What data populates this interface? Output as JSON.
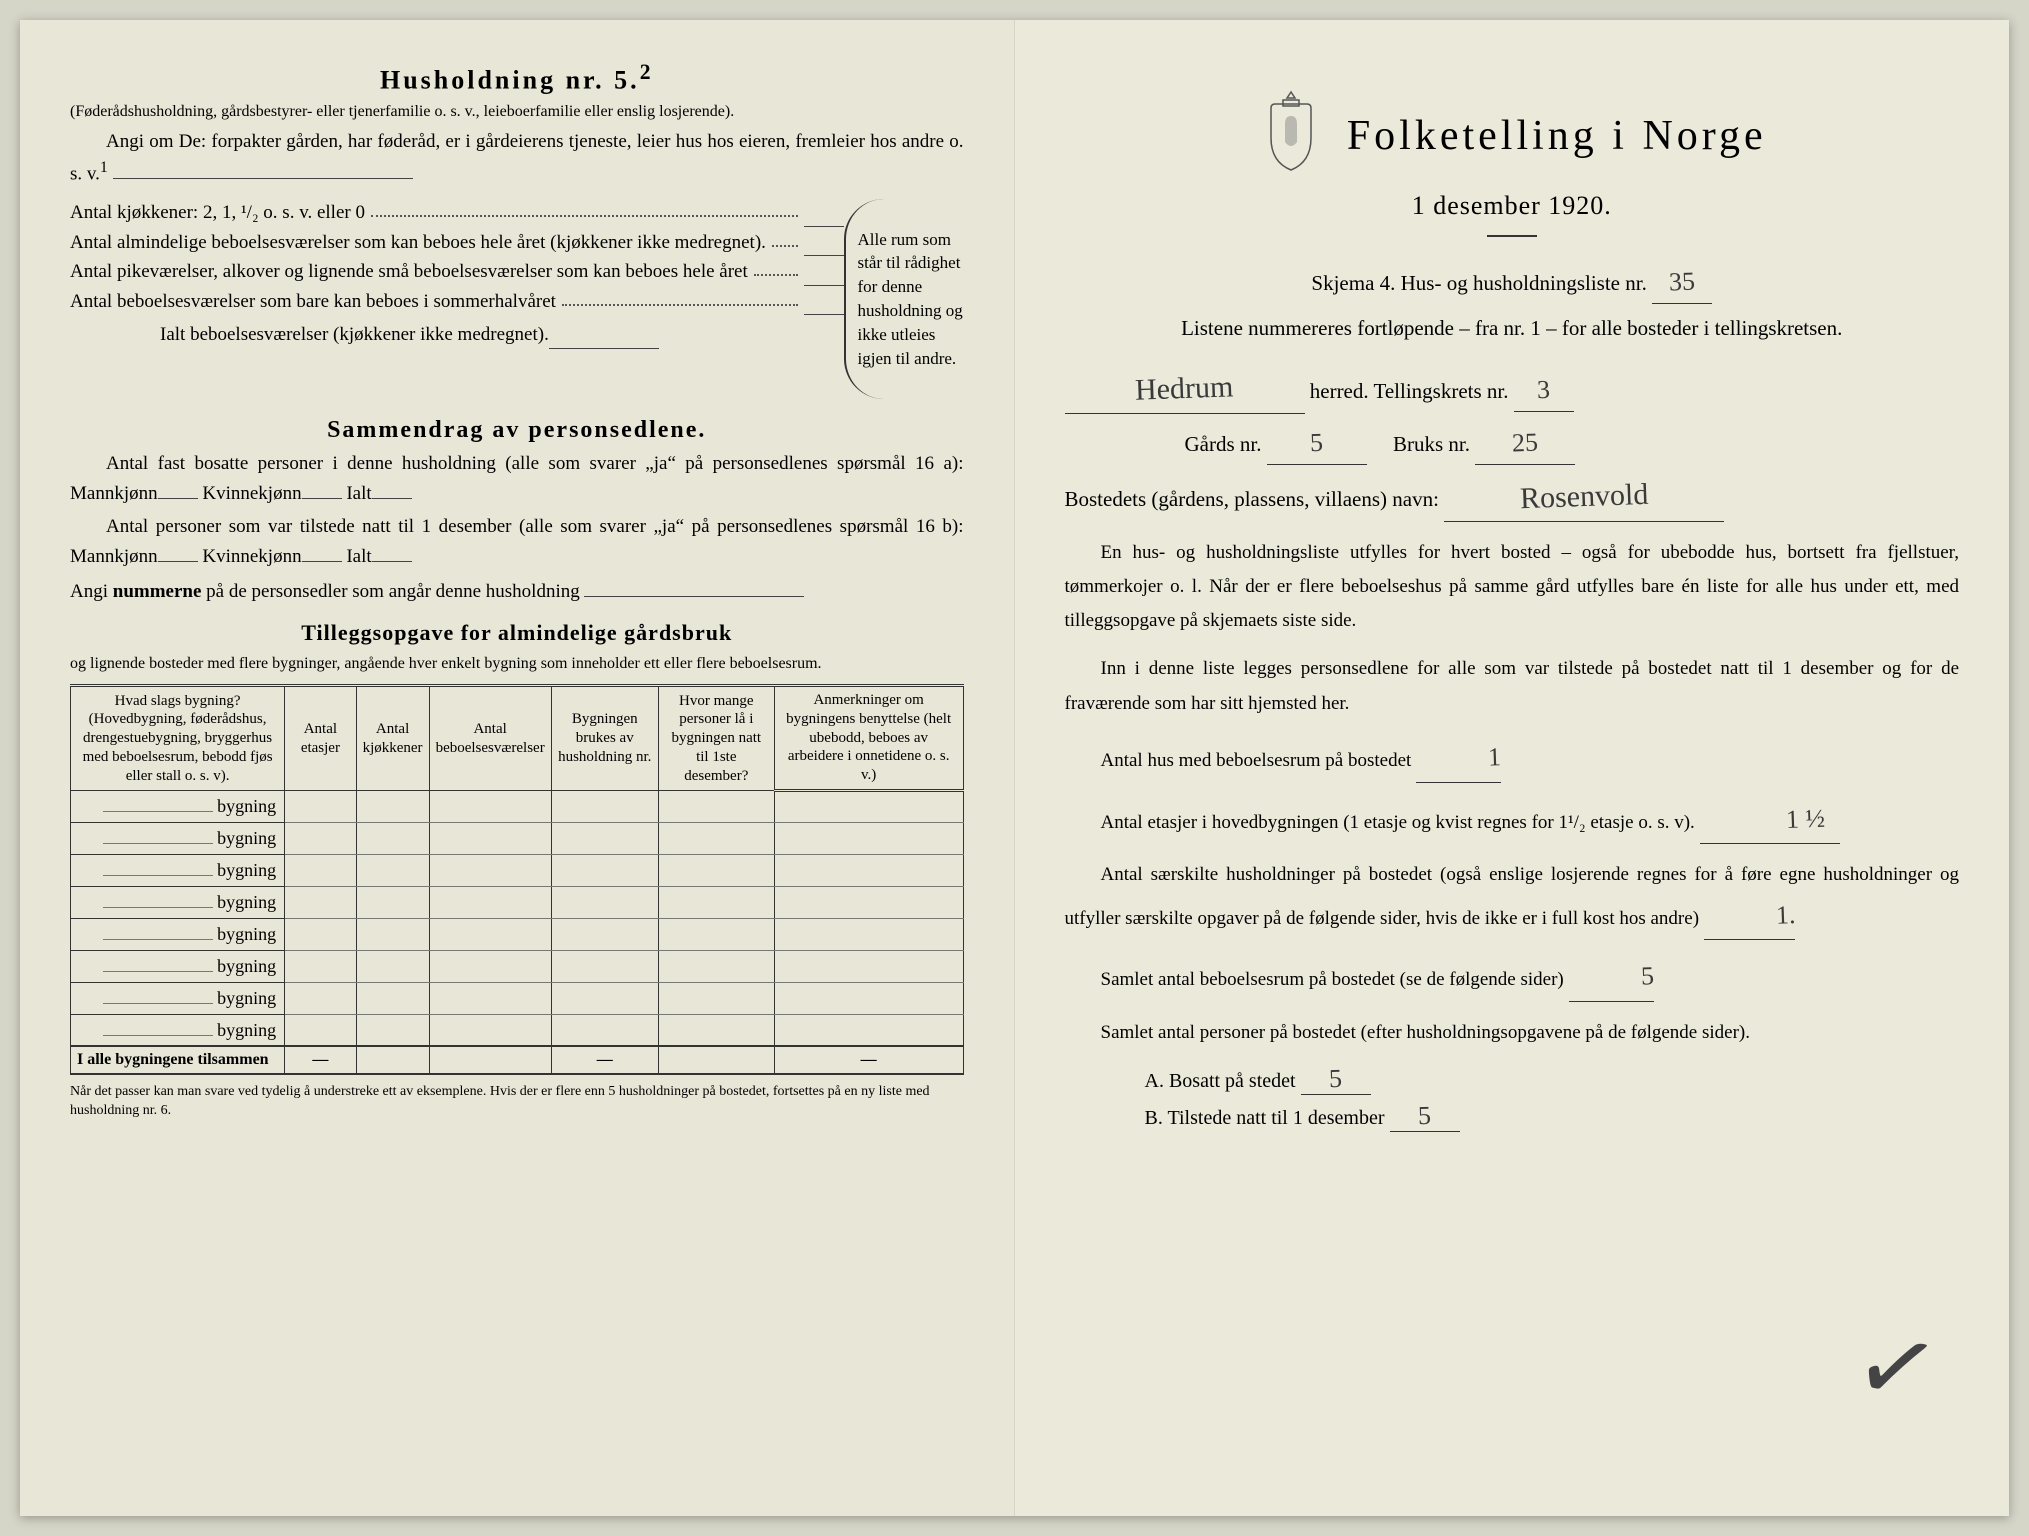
{
  "left": {
    "h2": "Husholdning nr. 5.",
    "h2_sup": "2",
    "intro1": "(Føderådshusholdning, gårdsbestyrer- eller tjenerfamilie o. s. v., leieboerfamilie eller enslig losjerende).",
    "intro2": "Angi om De:  forpakter gården, har føderåd, er i gårdeierens tjeneste, leier hus hos eieren, fremleier hos andre o. s. v.",
    "intro2_sup": "1",
    "kitchens_label": "Antal kjøkkener: 2, 1, ¹/₂ o. s. v. eller 0",
    "room_lines": [
      "Antal almindelige beboelsesværelser som kan beboes hele året (kjøkkener ikke medregnet).",
      "Antal pikeværelser, alkover og lignende små beboelsesværelser som kan beboes hele året",
      "Antal beboelsesværelser som bare kan beboes i sommerhalvåret"
    ],
    "ialt": "Ialt beboelsesværelser  (kjøkkener ikke medregnet).",
    "bracket_text": "Alle rum som står til rådighet for denne husholdning og ikke utleies igjen til andre.",
    "h3_summary": "Sammendrag av personsedlene.",
    "sum1_a": "Antal fast bosatte personer i denne husholdning (alle som svarer „ja“ på personsedlenes spørsmål 16 a): Mannkjønn",
    "sum1_b": "Kvinnekjønn",
    "sum1_c": "Ialt",
    "sum2_a": "Antal personer som var tilstede natt til 1 desember (alle som svarer „ja“ på personsedlenes spørsmål 16 b): Mannkjønn",
    "angi": "Angi ",
    "angi_bold": "nummerne",
    "angi_rest": " på de personsedler som angår denne husholdning",
    "h4_tillegg": "Tilleggsopgave for almindelige gårdsbruk",
    "tillegg_sub": "og lignende bosteder med flere bygninger, angående hver enkelt bygning som inneholder ett eller flere beboelsesrum.",
    "table": {
      "cols": [
        "Hvad slags bygning?\n(Hovedbygning, føderådshus, drengestuebygning, bryggerhus med beboelsesrum, bebodd fjøs eller stall o. s. v).",
        "Antal etasjer",
        "Antal kjøkkener",
        "Antal beboelsesværelser",
        "Bygningen brukes av husholdning nr.",
        "Hvor mange personer lå i bygningen natt til 1ste desember?",
        "Anmerkninger om bygningens benyttelse (helt ubebodd, beboes av arbeidere i onnetidene o. s. v.)"
      ],
      "rowcount": 8,
      "row_label": "bygning",
      "summary_label": "I alle bygningene tilsammen",
      "footnote": "Når det passer kan man svare ved tydelig å understreke ett av eksemplene.\nHvis der er flere enn 5 husholdninger på bostedet, fortsettes på en ny liste med husholdning nr. 6."
    }
  },
  "right": {
    "title": "Folketelling i Norge",
    "subtitle": "1 desember 1920.",
    "skjema": "Skjema 4.   Hus- og husholdningsliste nr.",
    "skjema_val": "35",
    "listene": "Listene nummereres fortløpende – fra nr. 1 – for alle bosteder i tellingskretsen.",
    "herred_val": "Hedrum",
    "herred_lbl": "herred.   Tellingskrets nr.",
    "krets_val": "3",
    "gards_lbl": "Gårds nr.",
    "gards_val": "5",
    "bruks_lbl": "Bruks nr.",
    "bruks_val": "25",
    "bosted_lbl": "Bostedets (gårdens, plassens, villaens) navn:",
    "bosted_val": "Rosenvold",
    "para1": "En hus- og husholdningsliste utfylles for hvert bosted – også for ubebodde hus, bortsett fra fjellstuer, tømmerkojer o. l.  Når der er flere beboelseshus på samme gård utfylles bare én liste for alle hus under ett, med tilleggsopgave på skjemaets siste side.",
    "para2": "Inn i denne liste legges personsedlene for alle som var tilstede på bostedet natt til 1 desember og for de fraværende som har sitt hjemsted her.",
    "q1_lbl": "Antal hus med beboelsesrum på bostedet",
    "q1_val": "1",
    "q2_a": "Antal etasjer i hovedbygningen (1 etasje og kvist regnes for 1¹/₂ etasje o. s. v).",
    "q2_val": "1 ½",
    "q3": "Antal særskilte husholdninger på bostedet (også enslige losjerende regnes for å føre egne husholdninger og utfyller særskilte opgaver på de følgende sider, hvis de ikke er i full kost hos andre)",
    "q3_val": "1.",
    "q4": "Samlet antal beboelsesrum på bostedet (se de følgende sider)",
    "q4_val": "5",
    "q5": "Samlet antal personer på bostedet (efter husholdningsopgavene på de følgende sider).",
    "qa_lbl": "A.   Bosatt på stedet",
    "qa_val": "5",
    "qb_lbl": "B.   Tilstede natt til 1 desember",
    "qb_val": "5"
  },
  "colors": {
    "paper": "#e8e6d6",
    "ink": "#2a2a28"
  }
}
